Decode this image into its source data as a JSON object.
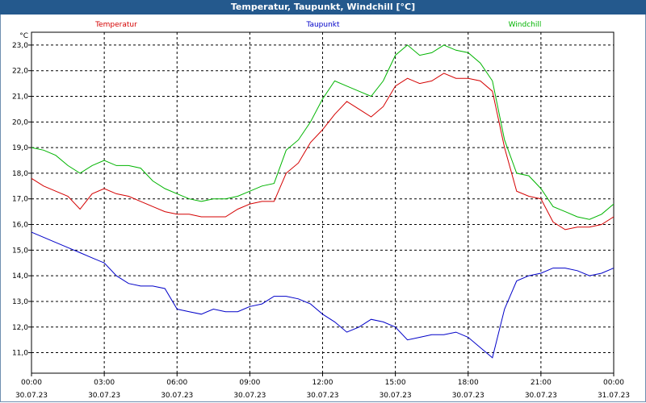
{
  "window": {
    "title": "Temperatur, Taupunkt, Windchill [°C]"
  },
  "colors": {
    "title_bg": "#24598d",
    "temperatur": "#d40000",
    "taupunkt": "#0000c8",
    "windchill": "#00b400",
    "grid": "#000000"
  },
  "chart_data": {
    "type": "line",
    "title": "Temperatur, Taupunkt, Windchill [°C]",
    "ylabel": "°C",
    "xlabel": "",
    "ylim": [
      10.2,
      23.5
    ],
    "xlim": [
      0,
      24
    ],
    "grid": true,
    "y_ticks": [
      "23,0",
      "22,0",
      "21,0",
      "20,0",
      "19,0",
      "18,0",
      "17,0",
      "16,0",
      "15,0",
      "14,0",
      "13,0",
      "12,0",
      "11,0"
    ],
    "x_ticks": [
      {
        "time": "00:00",
        "date": "30.07.23"
      },
      {
        "time": "03:00",
        "date": "30.07.23"
      },
      {
        "time": "06:00",
        "date": "30.07.23"
      },
      {
        "time": "09:00",
        "date": "30.07.23"
      },
      {
        "time": "12:00",
        "date": "30.07.23"
      },
      {
        "time": "15:00",
        "date": "30.07.23"
      },
      {
        "time": "18:00",
        "date": "30.07.23"
      },
      {
        "time": "21:00",
        "date": "30.07.23"
      },
      {
        "time": "00:00",
        "date": "31.07.23"
      }
    ],
    "x": [
      0,
      0.5,
      1,
      1.5,
      2,
      2.5,
      3,
      3.5,
      4,
      4.5,
      5,
      5.5,
      6,
      6.5,
      7,
      7.5,
      8,
      8.5,
      9,
      9.5,
      10,
      10.5,
      11,
      11.5,
      12,
      12.5,
      13,
      13.5,
      14,
      14.5,
      15,
      15.5,
      16,
      16.5,
      17,
      17.5,
      18,
      18.5,
      19,
      19.5,
      20,
      20.5,
      21,
      21.5,
      22,
      22.5,
      23,
      23.5,
      24
    ],
    "series": [
      {
        "name": "Temperatur",
        "values": [
          17.8,
          17.5,
          17.3,
          17.1,
          16.6,
          17.2,
          17.4,
          17.2,
          17.1,
          16.9,
          16.7,
          16.5,
          16.4,
          16.4,
          16.3,
          16.3,
          16.3,
          16.6,
          16.8,
          16.9,
          16.9,
          18.0,
          18.4,
          19.2,
          19.7,
          20.3,
          20.8,
          20.5,
          20.2,
          20.6,
          21.4,
          21.7,
          21.5,
          21.6,
          21.9,
          21.7,
          21.7,
          21.6,
          21.2,
          19.0,
          17.3,
          17.1,
          17.0,
          16.1,
          15.8,
          15.9,
          15.9,
          16.0,
          16.3
        ]
      },
      {
        "name": "Taupunkt",
        "values": [
          15.7,
          15.5,
          15.3,
          15.1,
          14.9,
          14.7,
          14.5,
          14.0,
          13.7,
          13.6,
          13.6,
          13.5,
          12.7,
          12.6,
          12.5,
          12.7,
          12.6,
          12.6,
          12.8,
          12.9,
          13.2,
          13.2,
          13.1,
          12.9,
          12.5,
          12.2,
          11.8,
          12.0,
          12.3,
          12.2,
          12.0,
          11.5,
          11.6,
          11.7,
          11.7,
          11.8,
          11.6,
          11.2,
          10.8,
          12.7,
          13.8,
          14.0,
          14.1,
          14.3,
          14.3,
          14.2,
          14.0,
          14.1,
          14.3
        ]
      },
      {
        "name": "Windchill",
        "values": [
          19.0,
          18.9,
          18.7,
          18.3,
          18.0,
          18.3,
          18.5,
          18.3,
          18.3,
          18.2,
          17.7,
          17.4,
          17.2,
          17.0,
          16.9,
          17.0,
          17.0,
          17.1,
          17.3,
          17.5,
          17.6,
          18.9,
          19.3,
          20.0,
          20.9,
          21.6,
          21.4,
          21.2,
          21.0,
          21.6,
          22.6,
          23.0,
          22.6,
          22.7,
          23.0,
          22.8,
          22.7,
          22.3,
          21.6,
          19.3,
          18.0,
          17.9,
          17.4,
          16.7,
          16.5,
          16.3,
          16.2,
          16.4,
          16.8
        ]
      }
    ]
  }
}
